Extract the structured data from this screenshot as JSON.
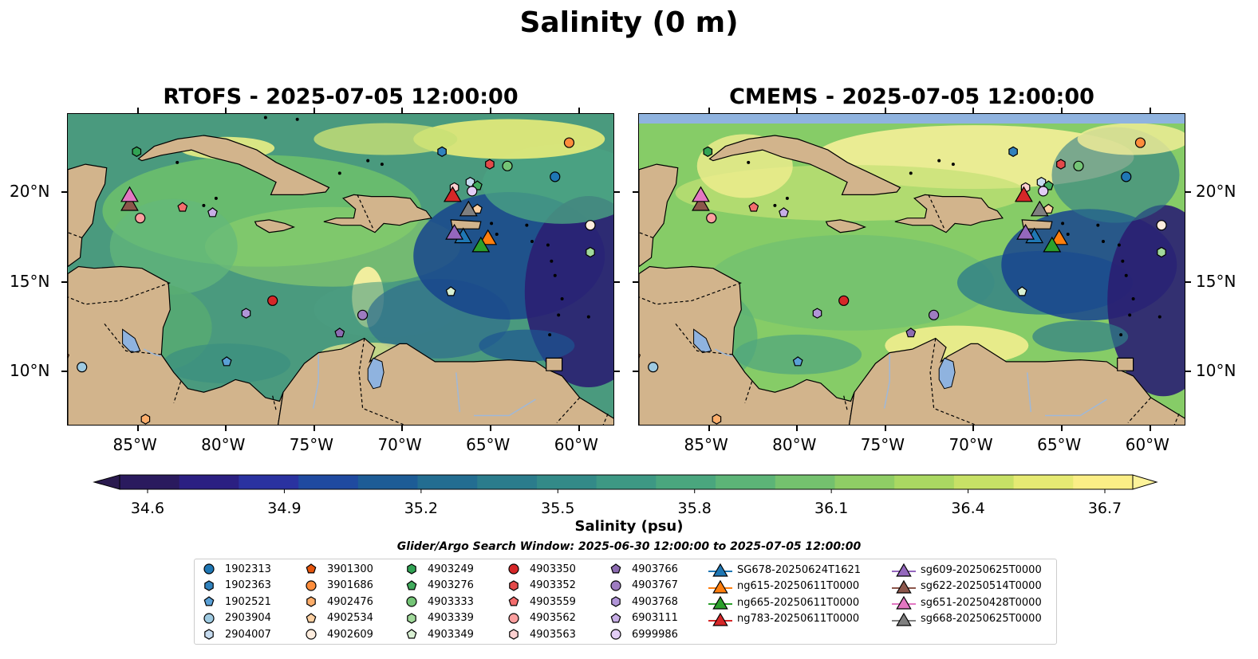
{
  "figure": {
    "title": "Salinity (0 m)"
  },
  "panels": [
    {
      "title": "RTOFS - 2025-07-05 12:00:00",
      "model": "RTOFS"
    },
    {
      "title": "CMEMS - 2025-07-05 12:00:00",
      "model": "CMEMS"
    }
  ],
  "map": {
    "lon_range": [
      -89,
      -58
    ],
    "lat_range": [
      7,
      24.4
    ],
    "lon_ticks": [
      "85°W",
      "80°W",
      "75°W",
      "70°W",
      "65°W",
      "60°W"
    ],
    "lat_ticks": [
      "20°N",
      "15°N",
      "10°N"
    ],
    "land_color": "#d2b48c",
    "lake_color": "#8fb3df"
  },
  "colorbar": {
    "label": "Salinity (psu)",
    "ticks": [
      "34.6",
      "34.9",
      "35.2",
      "35.5",
      "35.8",
      "36.1",
      "36.4",
      "36.7"
    ],
    "min": 34.6,
    "max": 36.7,
    "extend": "both",
    "colormap": "haline"
  },
  "search_window": "Glider/Argo Search Window: 2025-06-30 12:00:00 to 2025-07-05 12:00:00",
  "legend": {
    "columns": [
      [
        {
          "label": "1902313",
          "marker": "circle",
          "color": "#1f77b4"
        },
        {
          "label": "1902363",
          "marker": "hexagon",
          "color": "#3182bd"
        },
        {
          "label": "1902521",
          "marker": "pentagon",
          "color": "#5aa0d6"
        },
        {
          "label": "2903904",
          "marker": "circle",
          "color": "#9ecae1"
        },
        {
          "label": "2904007",
          "marker": "hexagon",
          "color": "#c6dbef"
        }
      ],
      [
        {
          "label": "3901300",
          "marker": "pentagon",
          "color": "#e6550d"
        },
        {
          "label": "3901686",
          "marker": "circle",
          "color": "#fd8d3c"
        },
        {
          "label": "4902476",
          "marker": "hexagon",
          "color": "#fdae6b"
        },
        {
          "label": "4902534",
          "marker": "pentagon",
          "color": "#fdd0a2"
        },
        {
          "label": "4902609",
          "marker": "circle",
          "color": "#feedde"
        }
      ],
      [
        {
          "label": "4903249",
          "marker": "hexagon",
          "color": "#31a354"
        },
        {
          "label": "4903276",
          "marker": "pentagon",
          "color": "#41ab5d"
        },
        {
          "label": "4903333",
          "marker": "circle",
          "color": "#74c476"
        },
        {
          "label": "4903339",
          "marker": "hexagon",
          "color": "#a1d99b"
        },
        {
          "label": "4903349",
          "marker": "pentagon",
          "color": "#d9f0d3"
        }
      ],
      [
        {
          "label": "4903350",
          "marker": "circle",
          "color": "#d62728"
        },
        {
          "label": "4903352",
          "marker": "hexagon",
          "color": "#e34a4a"
        },
        {
          "label": "4903559",
          "marker": "pentagon",
          "color": "#f46d6d"
        },
        {
          "label": "4903562",
          "marker": "circle",
          "color": "#fc9f9f"
        },
        {
          "label": "4903563",
          "marker": "hexagon",
          "color": "#fdd0d0"
        }
      ],
      [
        {
          "label": "4903766",
          "marker": "pentagon",
          "color": "#8c6bb1"
        },
        {
          "label": "4903767",
          "marker": "circle",
          "color": "#9e7cc1"
        },
        {
          "label": "4903768",
          "marker": "hexagon",
          "color": "#b195d8"
        },
        {
          "label": "6903111",
          "marker": "pentagon",
          "color": "#c7aee6"
        },
        {
          "label": "6999986",
          "marker": "circle",
          "color": "#e2cdf5"
        }
      ],
      [
        {
          "label": "SG678-20250624T1621",
          "marker": "triangle",
          "color": "#1f77b4"
        },
        {
          "label": "ng615-20250611T0000",
          "marker": "triangle",
          "color": "#ff7f0e"
        },
        {
          "label": "ng665-20250611T0000",
          "marker": "triangle",
          "color": "#2ca02c"
        },
        {
          "label": "ng783-20250611T0000",
          "marker": "triangle",
          "color": "#d62728"
        }
      ],
      [
        {
          "label": "sg609-20250625T0000",
          "marker": "triangle",
          "color": "#9467bd"
        },
        {
          "label": "sg622-20250514T0000",
          "marker": "triangle",
          "color": "#8c564b"
        },
        {
          "label": "sg651-20250428T0000",
          "marker": "triangle",
          "color": "#e377c2"
        },
        {
          "label": "sg668-20250625T0000",
          "marker": "triangle",
          "color": "#7f7f7f"
        }
      ]
    ]
  },
  "floats": [
    {
      "id": "1902313",
      "lon": -61.4,
      "lat": 20.9
    },
    {
      "id": "1902363",
      "lon": -67.8,
      "lat": 22.3
    },
    {
      "id": "1902521",
      "lon": -80.0,
      "lat": 10.6
    },
    {
      "id": "2903904",
      "lon": -88.2,
      "lat": 10.3
    },
    {
      "id": "2904007",
      "lon": -66.2,
      "lat": 20.6
    },
    {
      "id": "3901300",
      "lon": -89.2,
      "lat": 10.9
    },
    {
      "id": "3901686",
      "lon": -60.6,
      "lat": 22.8
    },
    {
      "id": "4902476",
      "lon": -84.6,
      "lat": 7.4
    },
    {
      "id": "4902534",
      "lon": -65.8,
      "lat": 19.1
    },
    {
      "id": "4902609",
      "lon": -59.4,
      "lat": 18.2
    },
    {
      "id": "4903249",
      "lon": -85.1,
      "lat": 22.3
    },
    {
      "id": "4903276",
      "lon": -65.8,
      "lat": 20.4
    },
    {
      "id": "4903333",
      "lon": -64.1,
      "lat": 21.5
    },
    {
      "id": "4903339",
      "lon": -59.4,
      "lat": 16.7
    },
    {
      "id": "4903349",
      "lon": -67.3,
      "lat": 14.5
    },
    {
      "id": "4903350",
      "lon": -77.4,
      "lat": 14.0
    },
    {
      "id": "4903352",
      "lon": -65.1,
      "lat": 21.6
    },
    {
      "id": "4903559",
      "lon": -82.5,
      "lat": 19.2
    },
    {
      "id": "4903562",
      "lon": -84.9,
      "lat": 18.6
    },
    {
      "id": "4903563",
      "lon": -67.1,
      "lat": 20.3
    },
    {
      "id": "4903766",
      "lon": -73.6,
      "lat": 12.2
    },
    {
      "id": "4903767",
      "lon": -72.3,
      "lat": 13.2
    },
    {
      "id": "4903768",
      "lon": -78.9,
      "lat": 13.3
    },
    {
      "id": "6903111",
      "lon": -80.8,
      "lat": 18.9
    },
    {
      "id": "6999986",
      "lon": -66.1,
      "lat": 20.1
    }
  ],
  "gliders": [
    {
      "id": "SG678-20250624T1621",
      "lon": -66.6,
      "lat": 17.6
    },
    {
      "id": "ng615-20250611T0000",
      "lon": -65.2,
      "lat": 17.5
    },
    {
      "id": "ng665-20250611T0000",
      "lon": -65.6,
      "lat": 17.1
    },
    {
      "id": "ng783-20250611T0000",
      "lon": -67.2,
      "lat": 19.9
    },
    {
      "id": "sg609-20250625T0000",
      "lon": -67.1,
      "lat": 17.8
    },
    {
      "id": "sg622-20250514T0000",
      "lon": -85.5,
      "lat": 19.4
    },
    {
      "id": "sg651-20250428T0000",
      "lon": -85.5,
      "lat": 19.9
    },
    {
      "id": "sg668-20250625T0000",
      "lon": -66.3,
      "lat": 19.1
    }
  ]
}
